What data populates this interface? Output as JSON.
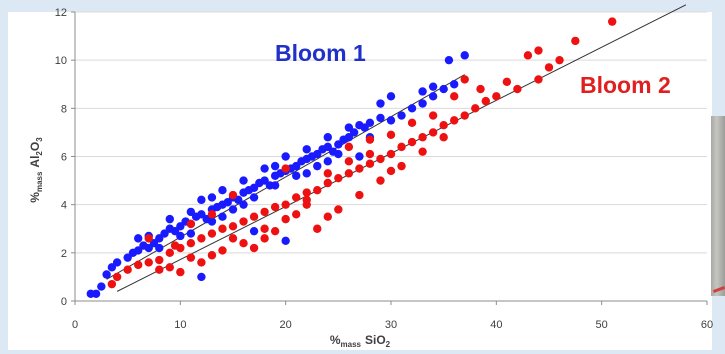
{
  "chart_data": {
    "type": "scatter",
    "title": "",
    "xlabel": "%mass SiO2",
    "xlabel_parts": {
      "prefix": "%",
      "sub1": "mass",
      "name": "SiO",
      "sub2": "2"
    },
    "ylabel": "%mass Al2O3",
    "ylabel_parts": {
      "prefix": "%",
      "sub1": "mass",
      "name1": "Al",
      "sub2": "2",
      "name2": "O",
      "sub3": "3"
    },
    "xlim": [
      0,
      60
    ],
    "ylim": [
      0,
      12
    ],
    "x_ticks": [
      "0",
      "10",
      "20",
      "30",
      "40",
      "50",
      "60"
    ],
    "y_ticks": [
      "0",
      "2",
      "4",
      "6",
      "8",
      "10",
      "12"
    ],
    "grid": "horizontal",
    "colors": {
      "bloom1": "#1a1aff",
      "bloom2": "#ee1111",
      "trend": "#333333",
      "gridline": "#d9d9d9"
    },
    "annotations": [
      "Bloom 1",
      "Bloom 2"
    ],
    "series": [
      {
        "name": "Bloom 1",
        "color": "#1a1aff",
        "points": [
          [
            1.5,
            0.3
          ],
          [
            2,
            0.3
          ],
          [
            2.5,
            0.6
          ],
          [
            3.5,
            1.4
          ],
          [
            3,
            1.1
          ],
          [
            4,
            1.6
          ],
          [
            5,
            1.8
          ],
          [
            5.5,
            2.0
          ],
          [
            6,
            2.1
          ],
          [
            6.5,
            2.3
          ],
          [
            7,
            2.2
          ],
          [
            7.5,
            2.4
          ],
          [
            7,
            2.7
          ],
          [
            8,
            2.6
          ],
          [
            8.5,
            2.8
          ],
          [
            9,
            3.0
          ],
          [
            9.5,
            2.9
          ],
          [
            10,
            3.1
          ],
          [
            10.5,
            3.3
          ],
          [
            11,
            3.2
          ],
          [
            11.5,
            3.5
          ],
          [
            12,
            3.6
          ],
          [
            12.5,
            3.4
          ],
          [
            13,
            3.8
          ],
          [
            13.5,
            3.9
          ],
          [
            14,
            4.0
          ],
          [
            14.5,
            4.1
          ],
          [
            15,
            4.3
          ],
          [
            15.5,
            4.2
          ],
          [
            16,
            4.5
          ],
          [
            16.5,
            4.6
          ],
          [
            17,
            4.7
          ],
          [
            17.5,
            4.9
          ],
          [
            18,
            5.0
          ],
          [
            18.5,
            4.8
          ],
          [
            19,
            5.2
          ],
          [
            19.5,
            5.3
          ],
          [
            20,
            5.4
          ],
          [
            20.5,
            5.5
          ],
          [
            21,
            5.6
          ],
          [
            21.5,
            5.8
          ],
          [
            22,
            5.9
          ],
          [
            22.5,
            6.0
          ],
          [
            23,
            6.1
          ],
          [
            23.5,
            6.3
          ],
          [
            24,
            6.4
          ],
          [
            24.5,
            6.2
          ],
          [
            25,
            6.5
          ],
          [
            25.5,
            6.7
          ],
          [
            26,
            6.8
          ],
          [
            26.5,
            7.0
          ],
          [
            27,
            7.3
          ],
          [
            27.5,
            7.2
          ],
          [
            28,
            7.4
          ],
          [
            29,
            7.6
          ],
          [
            30,
            7.5
          ],
          [
            31,
            7.7
          ],
          [
            32,
            8.0
          ],
          [
            33,
            8.2
          ],
          [
            34,
            8.5
          ],
          [
            35,
            8.8
          ],
          [
            36,
            9.0
          ],
          [
            37,
            10.2
          ],
          [
            35.5,
            10.0
          ],
          [
            11,
            2.8
          ],
          [
            12,
            4.2
          ],
          [
            13,
            3.3
          ],
          [
            14,
            4.6
          ],
          [
            15,
            3.8
          ],
          [
            16,
            5.0
          ],
          [
            17,
            4.3
          ],
          [
            18,
            5.5
          ],
          [
            19,
            4.8
          ],
          [
            20,
            6.0
          ],
          [
            21,
            5.2
          ],
          [
            22,
            6.3
          ],
          [
            23,
            5.6
          ],
          [
            24,
            6.8
          ],
          [
            25,
            6.1
          ],
          [
            26,
            7.2
          ],
          [
            9,
            3.4
          ],
          [
            8,
            2.2
          ],
          [
            10,
            2.7
          ],
          [
            6,
            2.6
          ],
          [
            12,
            1.0
          ],
          [
            17,
            2.9
          ],
          [
            20,
            2.5
          ],
          [
            27,
            6.0
          ],
          [
            28,
            6.8
          ],
          [
            24,
            5.8
          ],
          [
            22,
            5.3
          ],
          [
            19,
            5.6
          ],
          [
            16,
            4.0
          ],
          [
            14,
            3.5
          ],
          [
            13,
            4.3
          ],
          [
            11,
            3.7
          ],
          [
            29,
            8.2
          ],
          [
            30,
            8.5
          ],
          [
            33,
            8.7
          ],
          [
            34,
            8.9
          ]
        ]
      },
      {
        "name": "Bloom 2",
        "color": "#ee1111",
        "points": [
          [
            3.5,
            0.7
          ],
          [
            4,
            1.0
          ],
          [
            5,
            1.3
          ],
          [
            6,
            1.5
          ],
          [
            7,
            1.6
          ],
          [
            8,
            1.7
          ],
          [
            9,
            2.0
          ],
          [
            9.5,
            2.3
          ],
          [
            10,
            2.2
          ],
          [
            11,
            2.4
          ],
          [
            12,
            2.6
          ],
          [
            13,
            2.8
          ],
          [
            14,
            3.0
          ],
          [
            15,
            3.1
          ],
          [
            16,
            3.3
          ],
          [
            17,
            3.5
          ],
          [
            18,
            3.7
          ],
          [
            19,
            3.9
          ],
          [
            20,
            4.0
          ],
          [
            21,
            4.3
          ],
          [
            22,
            4.5
          ],
          [
            23,
            4.6
          ],
          [
            24,
            4.9
          ],
          [
            25,
            5.1
          ],
          [
            26,
            5.3
          ],
          [
            27,
            5.5
          ],
          [
            28,
            5.7
          ],
          [
            29,
            5.9
          ],
          [
            30,
            6.1
          ],
          [
            31,
            6.4
          ],
          [
            32,
            6.6
          ],
          [
            33,
            6.8
          ],
          [
            34,
            7.0
          ],
          [
            35,
            7.3
          ],
          [
            36,
            7.5
          ],
          [
            37,
            7.7
          ],
          [
            38,
            8.0
          ],
          [
            39,
            8.3
          ],
          [
            40,
            8.5
          ],
          [
            42,
            8.8
          ],
          [
            44,
            9.2
          ],
          [
            45,
            9.7
          ],
          [
            46,
            10.0
          ],
          [
            47.5,
            10.8
          ],
          [
            51,
            11.6
          ],
          [
            44,
            10.4
          ],
          [
            43,
            10.2
          ],
          [
            41,
            9.1
          ],
          [
            38.5,
            8.8
          ],
          [
            37,
            9.2
          ],
          [
            36,
            8.5
          ],
          [
            34,
            7.7
          ],
          [
            32,
            7.4
          ],
          [
            30,
            6.9
          ],
          [
            28,
            6.7
          ],
          [
            26,
            6.4
          ],
          [
            24,
            5.3
          ],
          [
            22,
            4.0
          ],
          [
            20,
            3.4
          ],
          [
            18,
            3.0
          ],
          [
            16,
            2.4
          ],
          [
            14,
            2.1
          ],
          [
            12,
            1.6
          ],
          [
            10,
            1.2
          ],
          [
            8,
            1.3
          ],
          [
            7,
            2.6
          ],
          [
            9,
            1.4
          ],
          [
            11,
            1.8
          ],
          [
            13,
            1.9
          ],
          [
            15,
            2.6
          ],
          [
            17,
            2.2
          ],
          [
            19,
            2.9
          ],
          [
            21,
            3.6
          ],
          [
            23,
            3.0
          ],
          [
            25,
            3.8
          ],
          [
            27,
            4.4
          ],
          [
            29,
            5.0
          ],
          [
            31,
            5.6
          ],
          [
            33,
            6.2
          ],
          [
            35,
            6.8
          ],
          [
            20,
            5.5
          ],
          [
            22,
            4.2
          ],
          [
            24,
            3.5
          ],
          [
            15,
            4.4
          ],
          [
            13,
            3.6
          ],
          [
            11,
            3.2
          ],
          [
            18,
            2.6
          ],
          [
            26,
            5.8
          ],
          [
            28,
            6.1
          ],
          [
            30,
            5.4
          ]
        ]
      }
    ],
    "trendlines": [
      {
        "name": "Bloom 1",
        "x": [
          3,
          37
        ],
        "y": [
          0.9,
          9.4
        ]
      },
      {
        "name": "Bloom 2",
        "x": [
          4,
          58
        ],
        "y": [
          0.4,
          12.3
        ]
      }
    ]
  }
}
